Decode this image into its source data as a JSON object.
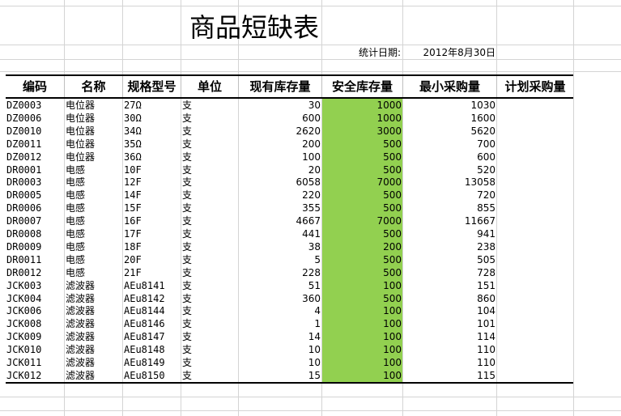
{
  "sheet": {
    "title": "商品短缺表",
    "stat_date_label": "统计日期:",
    "stat_date_value": "2012年8月30日"
  },
  "table": {
    "headers": [
      "编码",
      "名称",
      "规格型号",
      "单位",
      "现有库存量",
      "安全库存量",
      "最小采购量",
      "计划采购量"
    ],
    "rows": [
      {
        "code": "DZ0003",
        "name": "电位器",
        "spec": "27Ω",
        "unit": "支",
        "stock": "30",
        "safe": "1000",
        "min": "1030",
        "plan": ""
      },
      {
        "code": "DZ0006",
        "name": "电位器",
        "spec": "30Ω",
        "unit": "支",
        "stock": "600",
        "safe": "1000",
        "min": "1600",
        "plan": ""
      },
      {
        "code": "DZ0010",
        "name": "电位器",
        "spec": "34Ω",
        "unit": "支",
        "stock": "2620",
        "safe": "3000",
        "min": "5620",
        "plan": ""
      },
      {
        "code": "DZ0011",
        "name": "电位器",
        "spec": "35Ω",
        "unit": "支",
        "stock": "200",
        "safe": "500",
        "min": "700",
        "plan": ""
      },
      {
        "code": "DZ0012",
        "name": "电位器",
        "spec": "36Ω",
        "unit": "支",
        "stock": "100",
        "safe": "500",
        "min": "600",
        "plan": ""
      },
      {
        "code": "DR0001",
        "name": "电感",
        "spec": "10F",
        "unit": "支",
        "stock": "20",
        "safe": "500",
        "min": "520",
        "plan": ""
      },
      {
        "code": "DR0003",
        "name": "电感",
        "spec": "12F",
        "unit": "支",
        "stock": "6058",
        "safe": "7000",
        "min": "13058",
        "plan": ""
      },
      {
        "code": "DR0005",
        "name": "电感",
        "spec": "14F",
        "unit": "支",
        "stock": "220",
        "safe": "500",
        "min": "720",
        "plan": ""
      },
      {
        "code": "DR0006",
        "name": "电感",
        "spec": "15F",
        "unit": "支",
        "stock": "355",
        "safe": "500",
        "min": "855",
        "plan": ""
      },
      {
        "code": "DR0007",
        "name": "电感",
        "spec": "16F",
        "unit": "支",
        "stock": "4667",
        "safe": "7000",
        "min": "11667",
        "plan": ""
      },
      {
        "code": "DR0008",
        "name": "电感",
        "spec": "17F",
        "unit": "支",
        "stock": "441",
        "safe": "500",
        "min": "941",
        "plan": ""
      },
      {
        "code": "DR0009",
        "name": "电感",
        "spec": "18F",
        "unit": "支",
        "stock": "38",
        "safe": "200",
        "min": "238",
        "plan": ""
      },
      {
        "code": "DR0011",
        "name": "电感",
        "spec": "20F",
        "unit": "支",
        "stock": "5",
        "safe": "500",
        "min": "505",
        "plan": ""
      },
      {
        "code": "DR0012",
        "name": "电感",
        "spec": "21F",
        "unit": "支",
        "stock": "228",
        "safe": "500",
        "min": "728",
        "plan": ""
      },
      {
        "code": "JCK003",
        "name": "滤波器",
        "spec": "AEu8141",
        "unit": "支",
        "stock": "51",
        "safe": "100",
        "min": "151",
        "plan": ""
      },
      {
        "code": "JCK004",
        "name": "滤波器",
        "spec": "AEu8142",
        "unit": "支",
        "stock": "360",
        "safe": "500",
        "min": "860",
        "plan": ""
      },
      {
        "code": "JCK006",
        "name": "滤波器",
        "spec": "AEu8144",
        "unit": "支",
        "stock": "4",
        "safe": "100",
        "min": "104",
        "plan": ""
      },
      {
        "code": "JCK008",
        "name": "滤波器",
        "spec": "AEu8146",
        "unit": "支",
        "stock": "1",
        "safe": "100",
        "min": "101",
        "plan": ""
      },
      {
        "code": "JCK009",
        "name": "滤波器",
        "spec": "AEu8147",
        "unit": "支",
        "stock": "14",
        "safe": "100",
        "min": "114",
        "plan": ""
      },
      {
        "code": "JCK010",
        "name": "滤波器",
        "spec": "AEu8148",
        "unit": "支",
        "stock": "10",
        "safe": "100",
        "min": "110",
        "plan": ""
      },
      {
        "code": "JCK011",
        "name": "滤波器",
        "spec": "AEu8149",
        "unit": "支",
        "stock": "10",
        "safe": "100",
        "min": "110",
        "plan": ""
      },
      {
        "code": "JCK012",
        "name": "滤波器",
        "spec": "AEu8150",
        "unit": "支",
        "stock": "15",
        "safe": "100",
        "min": "115",
        "plan": ""
      }
    ]
  },
  "colors": {
    "safe_stock_fill": "#92d050",
    "gridline": "#d4d4d4"
  }
}
